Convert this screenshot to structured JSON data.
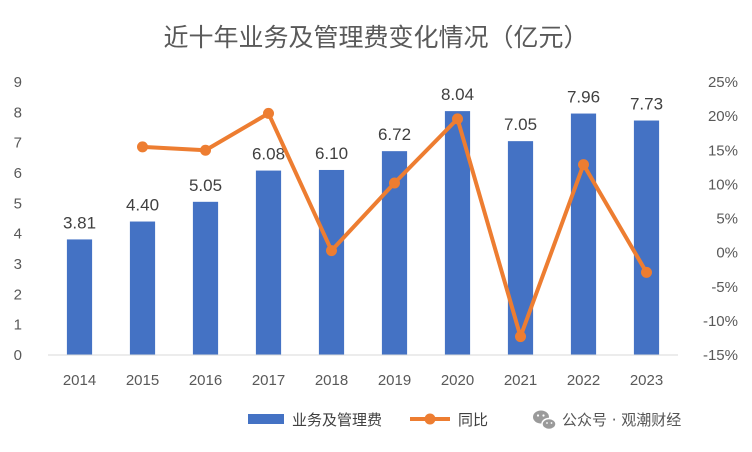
{
  "chart_data": {
    "type": "bar",
    "title": "近十年业务及管理费变化情况（亿元）",
    "categories": [
      "2014",
      "2015",
      "2016",
      "2017",
      "2018",
      "2019",
      "2020",
      "2021",
      "2022",
      "2023"
    ],
    "series": [
      {
        "name": "业务及管理费",
        "type": "bar",
        "axis": "left",
        "values": [
          3.81,
          4.4,
          5.05,
          6.08,
          6.1,
          6.72,
          8.04,
          7.05,
          7.96,
          7.73
        ],
        "labels": [
          "3.81",
          "4.40",
          "5.05",
          "6.08",
          "6.10",
          "6.72",
          "8.04",
          "7.05",
          "7.96",
          "7.73"
        ],
        "color": "#4472C4"
      },
      {
        "name": "同比",
        "type": "line",
        "axis": "right",
        "values": [
          null,
          15.5,
          15.0,
          20.4,
          0.3,
          10.2,
          19.6,
          -12.3,
          12.9,
          -2.9
        ],
        "color": "#ED7D31"
      }
    ],
    "y_left": {
      "min": 0,
      "max": 9,
      "ticks": [
        "0",
        "1",
        "2",
        "3",
        "4",
        "5",
        "6",
        "7",
        "8",
        "9"
      ]
    },
    "y_right": {
      "min": -15,
      "max": 25,
      "unit": "%",
      "ticks": [
        "-15%",
        "-10%",
        "-5%",
        "0%",
        "5%",
        "10%",
        "15%",
        "20%",
        "25%"
      ]
    },
    "grid": false,
    "legend_position": "bottom"
  },
  "watermark": {
    "text": "公众号 · 观潮财经",
    "icon": "wechat-icon",
    "color": "#9a9a9a"
  }
}
